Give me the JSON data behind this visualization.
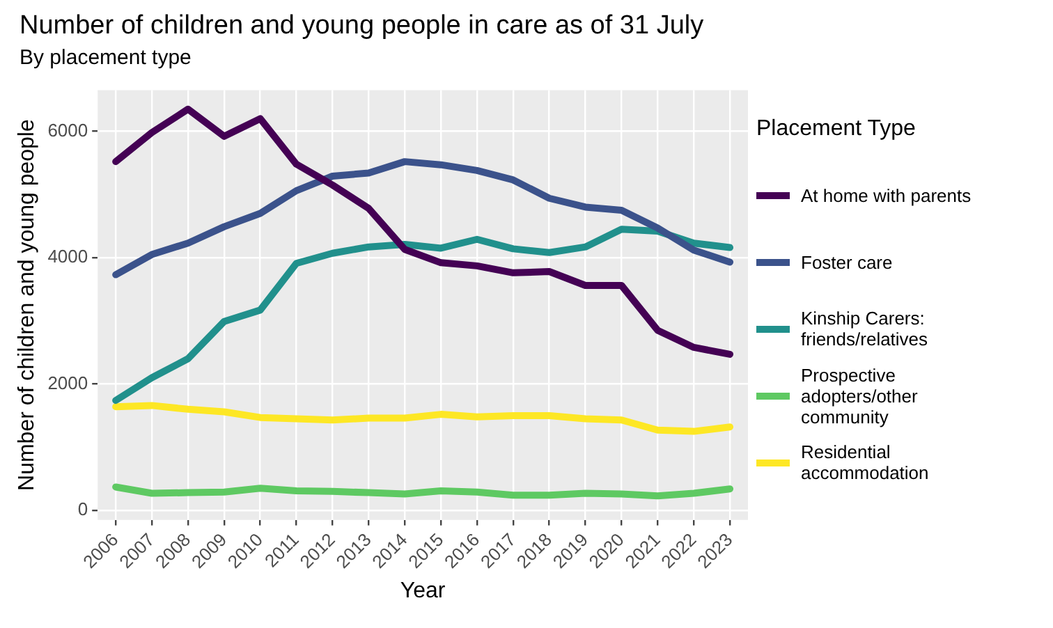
{
  "chart_data": {
    "type": "line",
    "title": "Number of children and young people in care as of 31 July",
    "subtitle": "By placement type",
    "xlabel": "Year",
    "ylabel": "Number of children and young people",
    "legend_title": "Placement Type",
    "categories": [
      "2006",
      "2007",
      "2008",
      "2009",
      "2010",
      "2011",
      "2012",
      "2013",
      "2014",
      "2015",
      "2016",
      "2017",
      "2018",
      "2019",
      "2020",
      "2021",
      "2022",
      "2023"
    ],
    "series": [
      {
        "name": "At home with parents",
        "color": "#440154",
        "values": [
          5520,
          5980,
          6350,
          5920,
          6200,
          5480,
          5150,
          4780,
          4130,
          3920,
          3870,
          3760,
          3780,
          3560,
          3560,
          2850,
          2580,
          2470
        ]
      },
      {
        "name": "Foster care",
        "color": "#3b528b",
        "values": [
          3730,
          4050,
          4230,
          4490,
          4700,
          5060,
          5290,
          5340,
          5520,
          5470,
          5380,
          5230,
          4940,
          4800,
          4750,
          4470,
          4120,
          3930
        ]
      },
      {
        "name": "Kinship Carers: friends/relatives",
        "color": "#21908c",
        "values": [
          1740,
          2100,
          2400,
          2990,
          3170,
          3910,
          4070,
          4170,
          4210,
          4150,
          4290,
          4140,
          4080,
          4170,
          4450,
          4420,
          4230,
          4160
        ]
      },
      {
        "name": "Prospective adopters/other community",
        "color": "#5ec962",
        "values": [
          370,
          270,
          280,
          290,
          350,
          310,
          300,
          280,
          260,
          310,
          290,
          240,
          240,
          270,
          260,
          230,
          270,
          340
        ]
      },
      {
        "name": "Residential accommodation",
        "color": "#fde725",
        "values": [
          1640,
          1660,
          1600,
          1560,
          1470,
          1450,
          1430,
          1460,
          1460,
          1520,
          1480,
          1500,
          1500,
          1450,
          1430,
          1270,
          1250,
          1320
        ]
      }
    ],
    "ylim": [
      -150,
      6650
    ],
    "yticks": [
      0,
      2000,
      4000,
      6000
    ],
    "grid": true,
    "legend": "right",
    "marker": "none",
    "line_style": "solid"
  }
}
